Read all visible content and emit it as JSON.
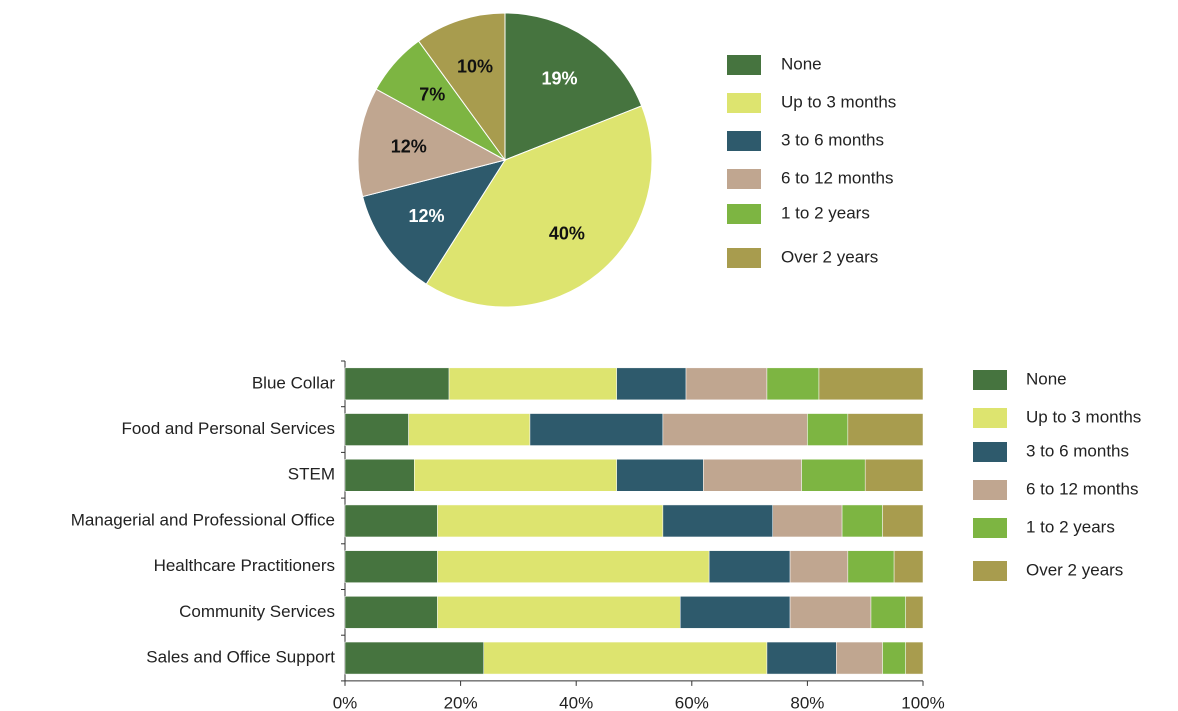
{
  "chart_data": [
    {
      "type": "pie",
      "categories": [
        "None",
        "Up to 3 months",
        "3 to 6 months",
        "6 to 12 months",
        "1 to 2 years",
        "Over 2 years"
      ],
      "values": [
        19,
        40,
        12,
        12,
        7,
        10
      ],
      "value_labels": [
        "19%",
        "40%",
        "12%",
        "12%",
        "7%",
        "10%"
      ],
      "colors": [
        "#46743f",
        "#dde46f",
        "#2e5a6c",
        "#c0a690",
        "#7db542",
        "#a89c4e"
      ]
    },
    {
      "type": "stacked_bar_horizontal",
      "categories": [
        "Blue Collar",
        "Food and Personal Services",
        "STEM",
        "Managerial and Professional Office",
        "Healthcare Practitioners",
        "Community Services",
        "Sales and Office Support"
      ],
      "series": [
        {
          "name": "None",
          "color": "#46743f",
          "values": [
            18,
            11,
            12,
            16,
            16,
            16,
            24
          ]
        },
        {
          "name": "Up to 3 months",
          "color": "#dde46f",
          "values": [
            29,
            21,
            35,
            39,
            47,
            42,
            49
          ]
        },
        {
          "name": "3 to 6 months",
          "color": "#2e5a6c",
          "values": [
            12,
            23,
            15,
            19,
            14,
            19,
            12
          ]
        },
        {
          "name": "6 to 12 months",
          "color": "#c0a690",
          "values": [
            14,
            25,
            17,
            12,
            10,
            14,
            8
          ]
        },
        {
          "name": "1 to 2 years",
          "color": "#7db542",
          "values": [
            9,
            7,
            11,
            7,
            8,
            6,
            4
          ]
        },
        {
          "name": "Over 2 years",
          "color": "#a89c4e",
          "values": [
            18,
            13,
            10,
            7,
            5,
            3,
            3
          ]
        }
      ],
      "xlim": [
        0,
        100
      ],
      "xticks": [
        {
          "value": 0,
          "label": "0%"
        },
        {
          "value": 20,
          "label": "20%"
        },
        {
          "value": 40,
          "label": "40%"
        },
        {
          "value": 60,
          "label": "60%"
        },
        {
          "value": 80,
          "label": "80%"
        },
        {
          "value": 100,
          "label": "100%"
        }
      ]
    }
  ]
}
